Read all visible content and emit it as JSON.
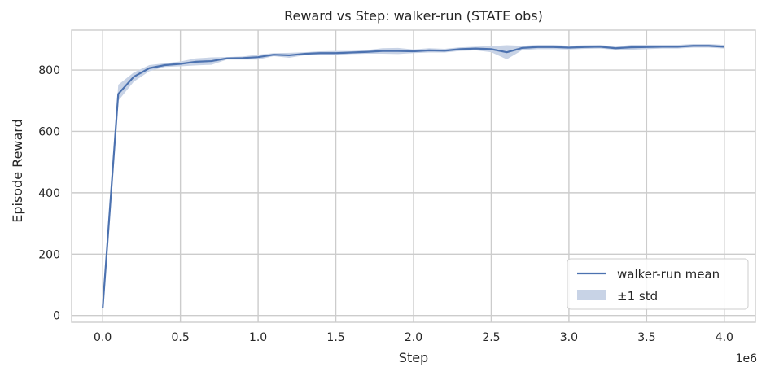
{
  "chart_data": {
    "type": "line",
    "title": "Reward vs Step: walker-run (STATE obs)",
    "xlabel": "Step",
    "ylabel": "Episode Reward",
    "x_offset_label": "1e6",
    "xlim": [
      -0.2,
      4.2
    ],
    "ylim": [
      -22,
      930
    ],
    "x_ticks": [
      0.0,
      0.5,
      1.0,
      1.5,
      2.0,
      2.5,
      3.0,
      3.5,
      4.0
    ],
    "x_tick_labels": [
      "0.0",
      "0.5",
      "1.0",
      "1.5",
      "2.0",
      "2.5",
      "3.0",
      "3.5",
      "4.0"
    ],
    "y_ticks": [
      0,
      200,
      400,
      600,
      800
    ],
    "y_tick_labels": [
      "0",
      "200",
      "400",
      "600",
      "800"
    ],
    "grid": true,
    "legend_position": "bottom-right",
    "legend": [
      "walker-run mean",
      "±1 std"
    ],
    "series": [
      {
        "name": "walker-run mean",
        "color": "#4c72b0",
        "band_color": "#c8d3e6",
        "x": [
          0.0,
          0.1,
          0.2,
          0.3,
          0.4,
          0.5,
          0.6,
          0.7,
          0.8,
          0.9,
          1.0,
          1.1,
          1.2,
          1.3,
          1.4,
          1.5,
          1.6,
          1.7,
          1.8,
          1.9,
          2.0,
          2.1,
          2.2,
          2.3,
          2.4,
          2.5,
          2.6,
          2.7,
          2.8,
          2.9,
          3.0,
          3.1,
          3.2,
          3.3,
          3.4,
          3.5,
          3.6,
          3.7,
          3.8,
          3.9,
          4.0
        ],
        "mean": [
          25,
          722,
          778,
          806,
          816,
          820,
          827,
          829,
          838,
          839,
          842,
          850,
          848,
          853,
          855,
          855,
          857,
          859,
          862,
          862,
          861,
          864,
          863,
          868,
          870,
          868,
          858,
          872,
          875,
          875,
          873,
          875,
          876,
          871,
          874,
          875,
          876,
          876,
          879,
          879,
          876
        ],
        "lower": [
          20,
          700,
          762,
          796,
          810,
          812,
          815,
          817,
          834,
          834,
          834,
          845,
          840,
          848,
          849,
          848,
          852,
          853,
          853,
          852,
          855,
          857,
          857,
          862,
          864,
          858,
          835,
          865,
          868,
          868,
          867,
          869,
          870,
          866,
          866,
          868,
          870,
          870,
          873,
          873,
          870
        ],
        "upper": [
          30,
          752,
          792,
          816,
          822,
          828,
          838,
          841,
          842,
          844,
          850,
          855,
          856,
          858,
          861,
          862,
          862,
          865,
          871,
          872,
          867,
          871,
          869,
          874,
          876,
          878,
          881,
          879,
          882,
          882,
          879,
          881,
          882,
          876,
          882,
          882,
          882,
          882,
          885,
          885,
          882
        ]
      }
    ]
  }
}
